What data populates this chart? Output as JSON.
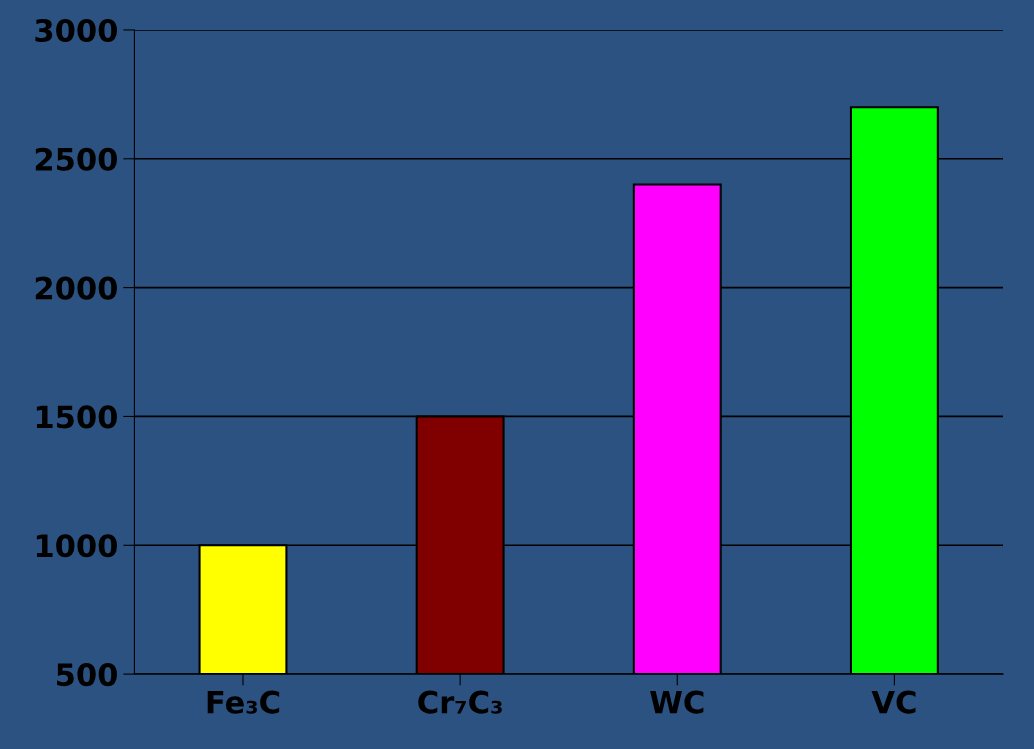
{
  "chart_data": {
    "type": "bar",
    "categories": [
      "Fe₃C",
      "Cr₇C₃",
      "WC",
      "VC"
    ],
    "values": [
      1000,
      1500,
      2400,
      2700
    ],
    "colors": [
      "#ffff00",
      "#800000",
      "#ff00ff",
      "#00ff00"
    ],
    "ylim": [
      500,
      3000
    ],
    "yticks": [
      500,
      1000,
      1500,
      2000,
      2500,
      3000
    ],
    "grid": "y"
  }
}
